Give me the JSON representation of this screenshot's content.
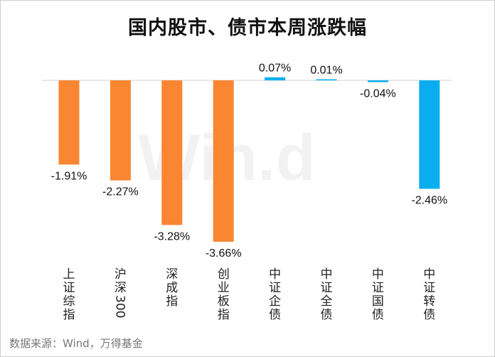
{
  "title": "国内股市、债市本周涨跌幅",
  "watermark": "Win.d",
  "source": "数据来源：Wind，万得基金",
  "colors": {
    "negative_stock": "#FA8632",
    "bond": "#0AAEEE",
    "axis": "#d0d0d0"
  },
  "chart_data": {
    "type": "bar",
    "title": "国内股市、债市本周涨跌幅",
    "xlabel": "",
    "ylabel": "",
    "ylim": [
      -4.5,
      0.1
    ],
    "grid": false,
    "legend": "none",
    "categories": [
      "上证综指",
      "沪深300",
      "深成指",
      "创业板指",
      "中证企债",
      "中证全债",
      "中证国债",
      "中证转债"
    ],
    "values": [
      -1.91,
      -2.27,
      -3.28,
      -3.66,
      0.07,
      0.01,
      -0.04,
      -2.46
    ],
    "value_labels": [
      "-1.91%",
      "-2.27%",
      "-3.28%",
      "-3.66%",
      "0.07%",
      "0.01%",
      "-0.04%",
      "-2.46%"
    ],
    "bar_colors": [
      "#FA8632",
      "#FA8632",
      "#FA8632",
      "#FA8632",
      "#0AAEEE",
      "#0AAEEE",
      "#0AAEEE",
      "#0AAEEE"
    ]
  }
}
